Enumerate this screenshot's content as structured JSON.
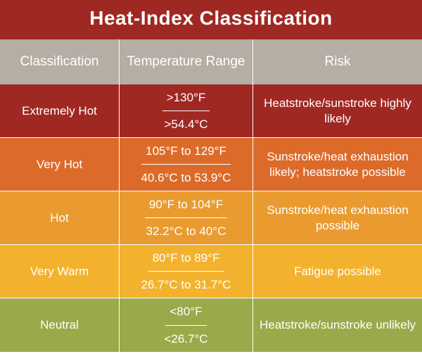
{
  "title": "Heat-Index Classification",
  "title_bg": "#a02823",
  "header_bg": "#b4aea4",
  "headers": {
    "classification": "Classification",
    "temp_range": "Temperature Range",
    "risk": "Risk"
  },
  "rows": [
    {
      "bg": "#a02823",
      "classification": "Extremely Hot",
      "temp_f": ">130°F",
      "temp_c": ">54.4°C",
      "risk": "Heatstroke/sunstroke highly likely"
    },
    {
      "bg": "#dc6b2a",
      "classification": "Very Hot",
      "temp_f": "105°F to 129°F",
      "temp_c": "40.6°C to 53.9°C",
      "risk": "Sunstroke/heat exhaustion likely; heatstroke possible"
    },
    {
      "bg": "#e99b2f",
      "classification": "Hot",
      "temp_f": "90°F to 104°F",
      "temp_c": "32.2°C to 40°C",
      "risk": "Sunstroke/heat exhaustion possible"
    },
    {
      "bg": "#f3b22e",
      "classification": "Very Warm",
      "temp_f": "80°F to 89°F",
      "temp_c": "26.7°C to 31.7°C",
      "risk": "Fatigue possible"
    },
    {
      "bg": "#9aaa4a",
      "classification": "Neutral",
      "temp_f": "<80°F",
      "temp_c": "<26.7°C",
      "risk": "Heatstroke/sunstroke unlikely"
    }
  ]
}
